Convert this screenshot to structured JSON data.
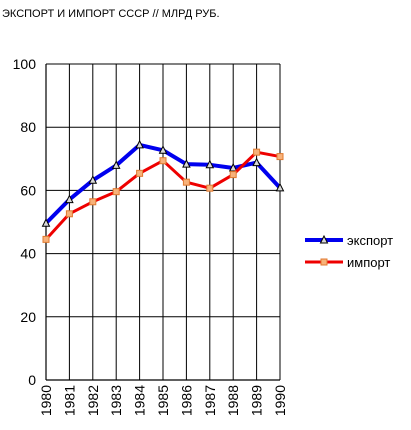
{
  "chart_data": {
    "type": "line",
    "title": "ЭКСПОРТ И ИМПОРТ СССР // МЛРД РУБ.",
    "xlabel": "",
    "ylabel": "",
    "x": [
      "1980",
      "1981",
      "1982",
      "1983",
      "1984",
      "1985",
      "1986",
      "1987",
      "1988",
      "1989",
      "1990"
    ],
    "ylim": [
      0,
      100
    ],
    "yticks": [
      0,
      20,
      40,
      60,
      80,
      100
    ],
    "grid": true,
    "legend_position": "right",
    "series": [
      {
        "name": "экспорт",
        "color": "#0000ee",
        "marker": "triangle",
        "values": [
          49.6,
          57.1,
          63.2,
          67.9,
          74.4,
          72.7,
          68.3,
          68.1,
          67.1,
          68.8,
          60.8
        ]
      },
      {
        "name": "импорт",
        "color": "#ee0000",
        "marker": "square",
        "values": [
          44.5,
          52.6,
          56.4,
          59.6,
          65.4,
          69.4,
          62.6,
          60.7,
          65.0,
          72.1,
          70.7
        ]
      }
    ]
  }
}
